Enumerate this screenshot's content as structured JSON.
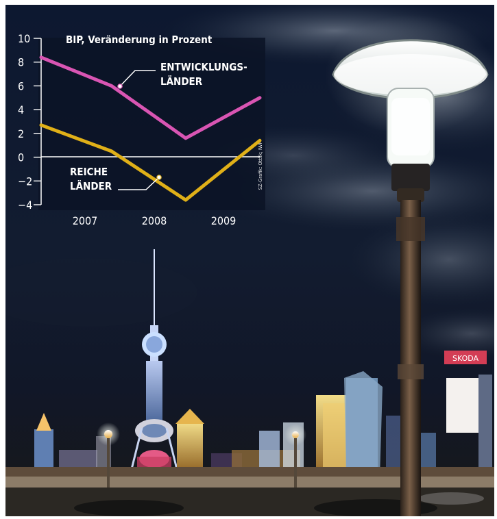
{
  "chart_data": {
    "type": "line",
    "title": "BIP, Veränderung in Prozent",
    "source": "SZ-Grafik: Ottlik; IWF",
    "categories": [
      "2007",
      "2008",
      "2009"
    ],
    "x": [
      2006.55,
      2007.5,
      2008.5,
      2009.5
    ],
    "ylim": [
      -4,
      10
    ],
    "yticks": [
      10,
      8,
      6,
      4,
      2,
      0,
      -2,
      -4
    ],
    "ytick_labels": [
      "10",
      "8",
      "6",
      "4",
      "2",
      "0",
      "−2",
      "−4"
    ],
    "grid": false,
    "series": [
      {
        "name": "ENTWICKLUNGS- LÄNDER",
        "label_lines": [
          "ENTWICKLUNGS-",
          "LÄNDER"
        ],
        "color": "#d955b3",
        "values": [
          8.4,
          6.0,
          1.6,
          5.0
        ]
      },
      {
        "name": "REICHE LÄNDER",
        "label_lines": [
          "REICHE",
          "LÄNDER"
        ],
        "color": "#e0b018",
        "values": [
          2.7,
          0.5,
          -3.6,
          1.4
        ]
      }
    ]
  },
  "colors": {
    "sky": "#0d1b31",
    "cloud": "#9ca7b4",
    "lamp_glow": "#f3f4ea",
    "night_lights": "#f0c85d",
    "axis": "#ffffff"
  },
  "scene": {
    "sign_text": "SKODA"
  }
}
